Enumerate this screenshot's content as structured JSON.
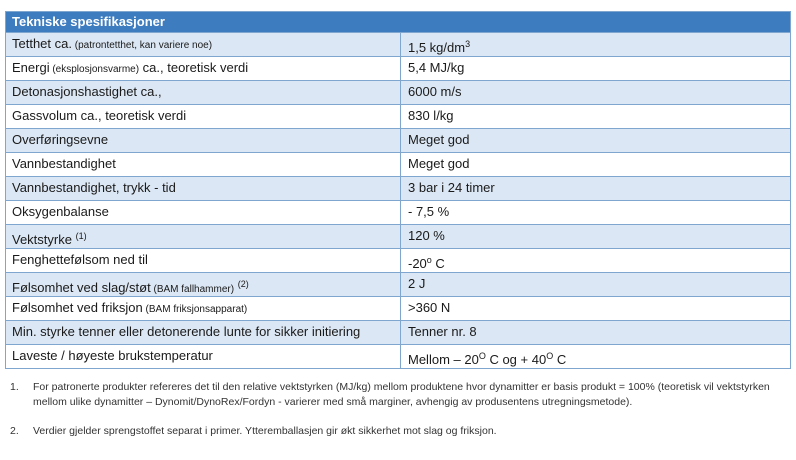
{
  "table": {
    "title": "Tekniske spesifikasjoner",
    "rows": [
      {
        "label": "Tetthet  ca.",
        "label_note": " (patrontetthet, kan variere noe)",
        "value": "1,5 kg/dm",
        "value_sup": "3"
      },
      {
        "label": "Energi",
        "label_note": " (eksplosjonsvarme)",
        "label_tail": " ca., teoretisk verdi",
        "value": "5,4 MJ/kg"
      },
      {
        "label": "Detonasjonshastighet ca.,",
        "value": "6000 m/s"
      },
      {
        "label": "Gassvolum ca., teoretisk verdi",
        "value": "830 l/kg"
      },
      {
        "label": "Overføringsevne",
        "value": "Meget god"
      },
      {
        "label": "Vannbestandighet",
        "value": "Meget god"
      },
      {
        "label": "Vannbestandighet,  trykk - tid",
        "value": "3 bar i 24 timer"
      },
      {
        "label": "Oksygenbalanse",
        "value": "- 7,5 %"
      },
      {
        "label": "Vektstyrke",
        "label_sup": "(1)",
        "value": "120 %"
      },
      {
        "label": "Fenghettefølsom ned til",
        "value": "-20",
        "value_sup": "o",
        "value_tail": " C"
      },
      {
        "label": "Følsomhet ved slag/støt",
        "label_note": " (BAM fallhammer)",
        "label_sup": "(2)",
        "value": "2 J"
      },
      {
        "label": "Følsomhet ved friksjon",
        "label_note": " (BAM friksjonsapparat)",
        "value": ">360 N"
      },
      {
        "label": "Min. styrke tenner eller detonerende lunte for sikker initiering",
        "value": "Tenner nr. 8"
      },
      {
        "label": "Laveste / høyeste brukstemperatur",
        "value": "Mellom – 20",
        "value_sup": "O",
        "value_tail": " C og + 40",
        "value_sup2": "O",
        "value_tail2": " C"
      }
    ]
  },
  "footnotes": [
    {
      "number": "1.",
      "text": "For patronerte produkter refereres det til den relative vektstyrken (MJ/kg) mellom produktene hvor dynamitter er basis produkt = 100% (teoretisk vil vektstyrken mellom ulike dynamitter – Dynomit/DynoRex/Fordyn - varierer med små marginer, avhengig av produsentens utregningsmetode)."
    },
    {
      "number": "2.",
      "text": "Verdier gjelder sprengstoffet separat i primer. Ytteremballasjen gir økt sikkerhet mot slag og friksjon."
    }
  ],
  "colors": {
    "header": "#3e7cc0",
    "row_shade": "#dbe7f4",
    "border": "#7fa6cf"
  }
}
